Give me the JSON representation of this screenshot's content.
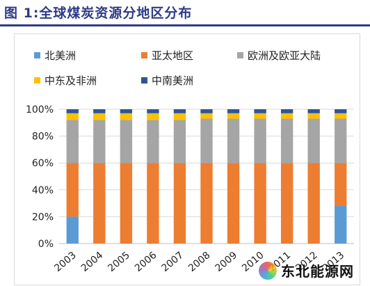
{
  "title": "图 1:全球煤炭资源分地区分布",
  "watermark": "东北能源网",
  "colors": {
    "title": "#2e3a87",
    "grid": "#d9d9d9"
  },
  "chart_data": {
    "type": "bar",
    "stacked": true,
    "categories": [
      "2003",
      "2004",
      "2005",
      "2006",
      "2007",
      "2008",
      "2009",
      "2010",
      "2011",
      "2012",
      "2013"
    ],
    "ylim": [
      0,
      100
    ],
    "yticks": [
      "0%",
      "20%",
      "40%",
      "60%",
      "80%",
      "100%"
    ],
    "ytick_values": [
      0,
      20,
      40,
      60,
      80,
      100
    ],
    "grid": true,
    "legend": "top",
    "series": [
      {
        "name": "北美洲",
        "color": "#5b9bd5",
        "values": [
          20,
          0,
          0,
          0,
          0,
          0,
          0,
          0,
          0,
          0,
          28
        ]
      },
      {
        "name": "亚太地区",
        "color": "#ed7d31",
        "values": [
          40,
          60,
          60,
          60,
          60,
          60,
          60,
          60,
          60,
          60,
          32
        ]
      },
      {
        "name": "欧洲及欧亚大陆",
        "color": "#a5a5a5",
        "values": [
          32,
          32,
          32,
          32,
          32,
          33,
          33,
          33,
          33,
          33,
          33
        ]
      },
      {
        "name": "中东及非洲",
        "color": "#ffc000",
        "values": [
          5,
          5,
          5,
          5,
          5,
          4,
          4,
          4,
          4,
          4,
          4
        ]
      },
      {
        "name": "中南美洲",
        "color": "#2f5597",
        "values": [
          3,
          3,
          3,
          3,
          3,
          3,
          3,
          3,
          3,
          3,
          3
        ]
      }
    ]
  }
}
